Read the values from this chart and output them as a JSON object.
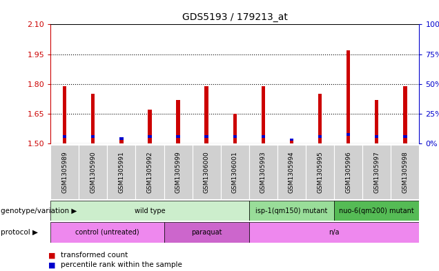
{
  "title": "GDS5193 / 179213_at",
  "samples": [
    "GSM1305989",
    "GSM1305990",
    "GSM1305991",
    "GSM1305992",
    "GSM1305999",
    "GSM1306000",
    "GSM1306001",
    "GSM1305993",
    "GSM1305994",
    "GSM1305995",
    "GSM1305996",
    "GSM1305997",
    "GSM1305998"
  ],
  "red_values": [
    1.79,
    1.75,
    1.52,
    1.67,
    1.72,
    1.79,
    1.65,
    1.79,
    1.52,
    1.75,
    1.97,
    1.72,
    1.79
  ],
  "blue_values": [
    1.535,
    1.535,
    1.525,
    1.535,
    1.535,
    1.535,
    1.535,
    1.535,
    1.52,
    1.535,
    1.545,
    1.535,
    1.535
  ],
  "ylim_left": [
    1.5,
    2.1
  ],
  "ylim_right": [
    0,
    100
  ],
  "yticks_left": [
    1.5,
    1.65,
    1.8,
    1.95,
    2.1
  ],
  "yticks_right": [
    0,
    25,
    50,
    75,
    100
  ],
  "hlines": [
    1.65,
    1.8,
    1.95
  ],
  "genotype_groups": [
    {
      "label": "wild type",
      "start": 0,
      "end": 7,
      "color": "#cceecc"
    },
    {
      "label": "isp-1(qm150) mutant",
      "start": 7,
      "end": 10,
      "color": "#99dd99"
    },
    {
      "label": "nuo-6(qm200) mutant",
      "start": 10,
      "end": 13,
      "color": "#55bb55"
    }
  ],
  "protocol_groups": [
    {
      "label": "control (untreated)",
      "start": 0,
      "end": 4,
      "color": "#ee88ee"
    },
    {
      "label": "paraquat",
      "start": 4,
      "end": 7,
      "color": "#cc66cc"
    },
    {
      "label": "n/a",
      "start": 7,
      "end": 13,
      "color": "#ee88ee"
    }
  ],
  "red_color": "#cc0000",
  "blue_color": "#0000cc",
  "bar_bg_color": "#d0d0d0",
  "legend_red": "transformed count",
  "legend_blue": "percentile rank within the sample",
  "left_axis_color": "#cc0000",
  "right_axis_color": "#0000cc",
  "genotype_label": "genotype/variation",
  "protocol_label": "protocol",
  "chart_bg": "#ffffff"
}
